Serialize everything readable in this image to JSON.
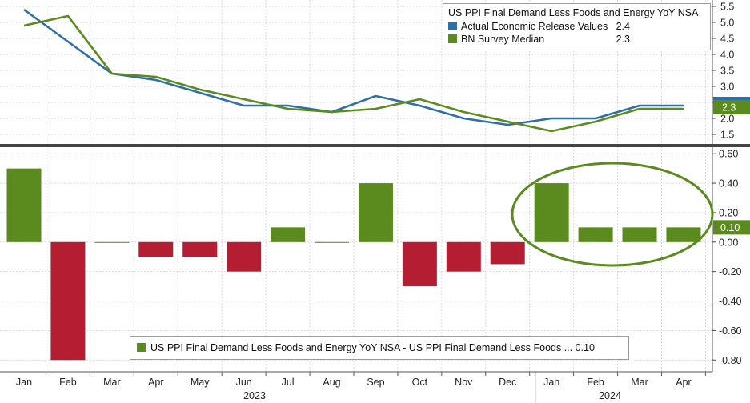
{
  "colors": {
    "blue": "#2e6fa6",
    "green": "#5b8a1e",
    "red": "#b51d33",
    "grid": "#d9d9d9"
  },
  "chart_data": [
    {
      "type": "line",
      "title": "US PPI Final Demand Less Foods and Energy YoY NSA",
      "x": [
        "Jan 2023",
        "Feb 2023",
        "Mar 2023",
        "Apr 2023",
        "May 2023",
        "Jun 2023",
        "Jul 2023",
        "Aug 2023",
        "Sep 2023",
        "Oct 2023",
        "Nov 2023",
        "Dec 2023",
        "Jan 2024",
        "Feb 2024",
        "Mar 2024",
        "Apr 2024"
      ],
      "series": [
        {
          "name": "Actual Economic Release Values",
          "last_label": "2.4",
          "color": "#2e6fa6",
          "values": [
            5.4,
            4.4,
            3.4,
            3.2,
            2.8,
            2.4,
            2.4,
            2.2,
            2.7,
            2.4,
            2.0,
            1.8,
            2.0,
            2.0,
            2.4,
            2.4
          ]
        },
        {
          "name": "BN Survey Median",
          "last_label": "2.3",
          "color": "#5b8a1e",
          "values": [
            4.9,
            5.2,
            3.4,
            3.3,
            2.9,
            2.6,
            2.3,
            2.2,
            2.3,
            2.6,
            2.2,
            1.9,
            1.6,
            1.9,
            2.3,
            2.3
          ]
        }
      ],
      "yticks": [
        "1.5",
        "2.0",
        "2.5",
        "3.0",
        "3.5",
        "4.0",
        "4.5",
        "5.0",
        "5.5"
      ],
      "ylim": [
        1.2,
        5.7
      ],
      "current_value_tag": "2.3",
      "legend_position": "top-right"
    },
    {
      "type": "bar",
      "categories": [
        "Jan 2023",
        "Feb 2023",
        "Mar 2023",
        "Apr 2023",
        "May 2023",
        "Jun 2023",
        "Jul 2023",
        "Aug 2023",
        "Sep 2023",
        "Oct 2023",
        "Nov 2023",
        "Dec 2023",
        "Jan 2024",
        "Feb 2024",
        "Mar 2024",
        "Apr 2024"
      ],
      "series": [
        {
          "name": "US PPI Final Demand Less Foods and Energy YoY NSA - US PPI Final Demand Less Foods ...",
          "last_label": "0.10",
          "values": [
            0.5,
            -0.8,
            0.0,
            -0.1,
            -0.1,
            -0.2,
            0.1,
            0.0,
            0.4,
            -0.3,
            -0.2,
            -0.15,
            0.4,
            0.1,
            0.1,
            0.1
          ]
        }
      ],
      "yticks": [
        "-0.80",
        "-0.60",
        "-0.40",
        "-0.20",
        "0.00",
        "0.20",
        "0.40",
        "0.60"
      ],
      "ylim": [
        -0.88,
        0.65
      ],
      "current_value_tag": "0.10",
      "legend_position": "bottom-center",
      "annotation": "green ellipse around Jan-Apr 2024 bars"
    }
  ],
  "xaxis": {
    "months": [
      "Jan",
      "Feb",
      "Mar",
      "Apr",
      "May",
      "Jun",
      "Jul",
      "Aug",
      "Sep",
      "Oct",
      "Nov",
      "Dec",
      "Jan",
      "Feb",
      "Mar",
      "Apr"
    ],
    "years": [
      "2023",
      "2024"
    ]
  }
}
